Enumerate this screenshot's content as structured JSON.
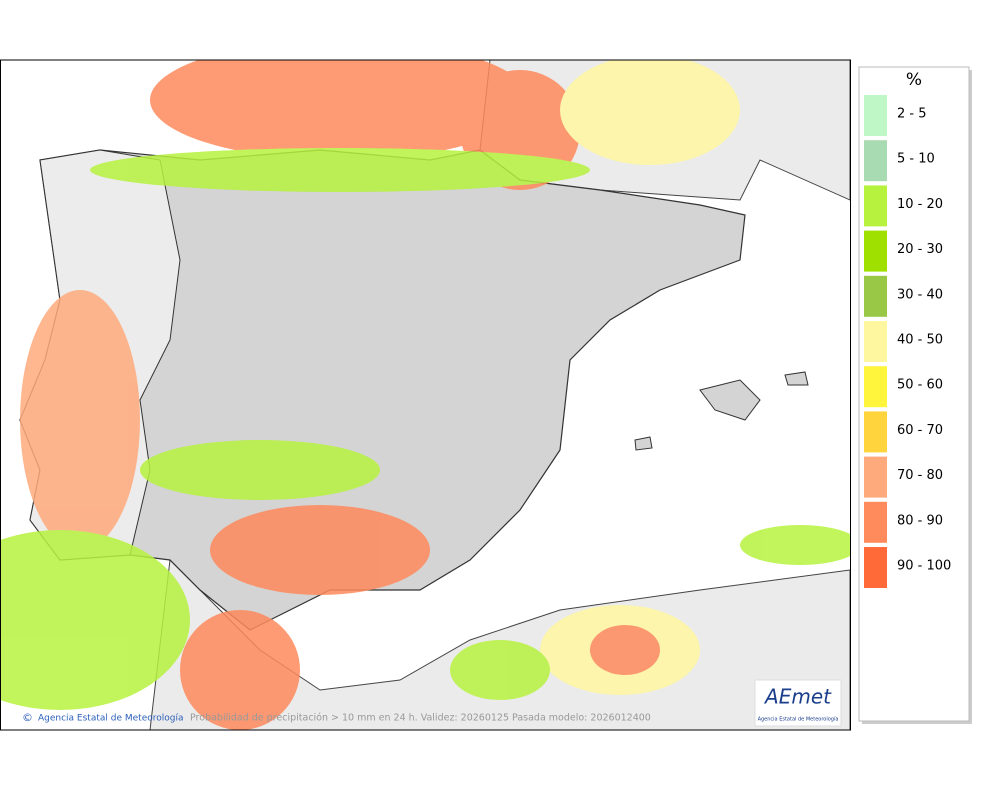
{
  "map": {
    "legend": {
      "title": "%",
      "items": [
        {
          "label": "2 - 5",
          "color": "#bff7c6"
        },
        {
          "label": "5 - 10",
          "color": "#a9dbb2"
        },
        {
          "label": "10 - 20",
          "color": "#b7f23e"
        },
        {
          "label": "20 - 30",
          "color": "#9fe000"
        },
        {
          "label": "30 - 40",
          "color": "#98c846"
        },
        {
          "label": "40 - 50",
          "color": "#fff7a0"
        },
        {
          "label": "50 - 60",
          "color": "#fff53c"
        },
        {
          "label": "60 - 70",
          "color": "#ffd43c"
        },
        {
          "label": "70 - 80",
          "color": "#ffaa7c"
        },
        {
          "label": "80 - 90",
          "color": "#ff8a5c"
        },
        {
          "label": "90 - 100",
          "color": "#ff6a38"
        }
      ]
    },
    "footer": {
      "credit": "Agencia Estatal de Meteorología",
      "caption": "Probabilidad de precipitación > 10 mm en 24 h. Validez: 20260125 Pasada modelo: 2026012400"
    },
    "logo": {
      "name": "AEmet",
      "subtitle": "Agencia Estatal de Meteorología"
    }
  }
}
